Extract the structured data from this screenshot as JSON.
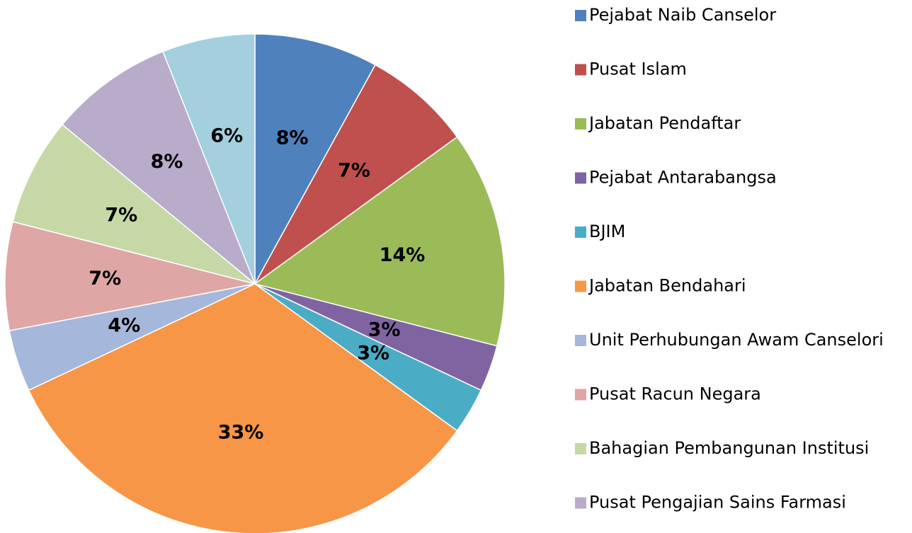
{
  "chart_data": {
    "type": "pie",
    "categories": [
      "Pejabat Naib Canselor",
      "Pusat Islam",
      "Jabatan Pendaftar",
      "Pejabat Antarabangsa",
      "BJIM",
      "Jabatan Bendahari",
      "Unit Perhubungan Awam Canselori",
      "Pusat Racun Negara",
      "Bahagian Pembangunan Institusi",
      "Pusat Pengajian Sains Farmasi",
      null
    ],
    "values": [
      8,
      7,
      14,
      3,
      3,
      33,
      4,
      7,
      7,
      8,
      6
    ],
    "value_labels": [
      "8%",
      "7%",
      "14%",
      "3%",
      "3%",
      "33%",
      "4%",
      "7%",
      "7%",
      "8%",
      "6%"
    ],
    "colors": [
      "#4f81bd",
      "#c0504d",
      "#9bbb59",
      "#8064a2",
      "#4bacc6",
      "#f79646",
      "#a5b8db",
      "#dea6a5",
      "#c6d8a6",
      "#b9abca",
      "#a3cfdf"
    ],
    "legend": "right"
  }
}
